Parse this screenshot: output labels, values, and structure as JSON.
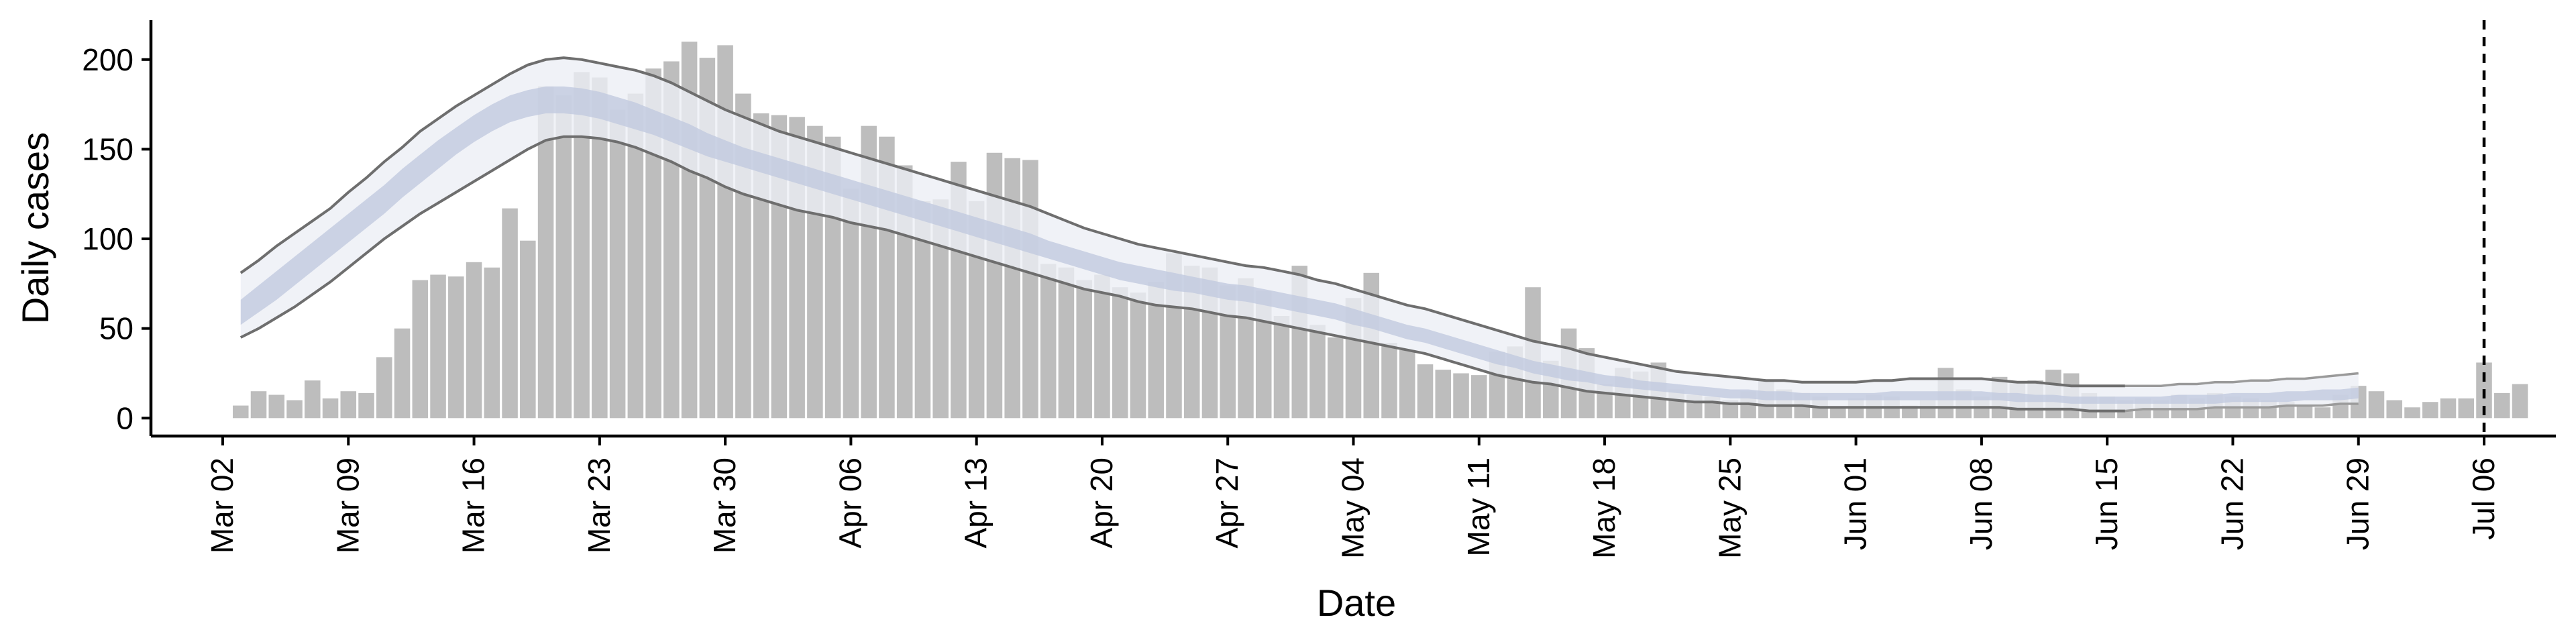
{
  "chart_data": {
    "type": "bar",
    "xlabel": "Date",
    "ylabel": "Daily cases",
    "ylim": [
      -10,
      222
    ],
    "yticks": [
      0,
      50,
      100,
      150,
      200
    ],
    "x_start": "2020-02-27",
    "x_end": "2020-07-10",
    "xtick_labels": [
      "Mar 02",
      "Mar 09",
      "Mar 16",
      "Mar 23",
      "Mar 30",
      "Apr 06",
      "Apr 13",
      "Apr 20",
      "Apr 27",
      "May 04",
      "May 11",
      "May 18",
      "May 25",
      "Jun 01",
      "Jun 08",
      "Jun 15",
      "Jun 22",
      "Jun 29",
      "Jul 06"
    ],
    "xtick_dates": [
      "2020-03-02",
      "2020-03-09",
      "2020-03-16",
      "2020-03-23",
      "2020-03-30",
      "2020-04-06",
      "2020-04-13",
      "2020-04-20",
      "2020-04-27",
      "2020-05-04",
      "2020-05-11",
      "2020-05-18",
      "2020-05-25",
      "2020-06-01",
      "2020-06-08",
      "2020-06-15",
      "2020-06-22",
      "2020-06-29",
      "2020-07-06"
    ],
    "vline_date": "2020-07-06",
    "grid": false,
    "colors": {
      "bars": "#bdbdbd",
      "outer_band": "#eceef5",
      "inner_band": "#c2cadf",
      "band_lines": "#6e6e6e",
      "tail_lines": "#9a9a9a",
      "axis": "#000000"
    },
    "daily_cases": {
      "start_date": "2020-03-03",
      "values": [
        7,
        15,
        13,
        10,
        21,
        11,
        15,
        14,
        34,
        50,
        77,
        80,
        79,
        87,
        84,
        117,
        99,
        185,
        180,
        193,
        190,
        172,
        181,
        195,
        199,
        210,
        201,
        208,
        181,
        170,
        169,
        168,
        163,
        157,
        128,
        163,
        157,
        141,
        121,
        122,
        143,
        121,
        148,
        145,
        144,
        86,
        84,
        77,
        80,
        73,
        70,
        76,
        92,
        85,
        84,
        74,
        78,
        71,
        57,
        85,
        52,
        45,
        67,
        81,
        42,
        38,
        30,
        27,
        25,
        24,
        37,
        40,
        73,
        32,
        50,
        39,
        19,
        28,
        26,
        31,
        16,
        13,
        12,
        10,
        15,
        21,
        16,
        14,
        12,
        6,
        11,
        13,
        12,
        7,
        10,
        28,
        16,
        12,
        23,
        20,
        21,
        27,
        25,
        14,
        12,
        10,
        11,
        10,
        13,
        11,
        14,
        12,
        11,
        10,
        9,
        7,
        6,
        13,
        18,
        15,
        10,
        6,
        9,
        11,
        11,
        31,
        14,
        19
      ]
    },
    "estimate": {
      "start_date": "2020-03-03",
      "outer_upper": [
        81,
        88,
        96,
        103,
        110,
        117,
        126,
        134,
        143,
        151,
        160,
        167,
        174,
        180,
        186,
        192,
        197,
        200,
        201,
        200,
        198,
        196,
        194,
        191,
        187,
        182,
        177,
        172,
        168,
        164,
        160,
        157,
        154,
        151,
        148,
        145,
        142,
        139,
        136,
        133,
        130,
        127,
        124,
        121,
        118,
        114,
        110,
        106,
        103,
        100,
        97,
        95,
        93,
        91,
        89,
        87,
        85,
        84,
        82,
        80,
        77,
        75,
        72,
        69,
        66,
        63,
        61,
        58,
        55,
        52,
        49,
        46,
        43,
        41,
        39,
        36,
        34,
        32,
        30,
        28,
        26,
        25,
        24,
        23,
        22,
        21,
        21,
        20,
        20,
        20,
        20,
        21,
        21,
        22,
        22,
        22,
        22,
        22,
        21,
        20,
        20,
        19,
        18,
        18,
        18,
        18,
        18,
        18,
        19,
        19,
        20,
        20,
        21,
        21,
        22,
        22,
        23,
        24,
        25
      ],
      "inner_upper": [
        66,
        74,
        82,
        90,
        98,
        106,
        114,
        122,
        130,
        139,
        147,
        155,
        162,
        169,
        175,
        180,
        183,
        185,
        185,
        184,
        182,
        179,
        176,
        172,
        168,
        164,
        159,
        155,
        151,
        148,
        145,
        142,
        139,
        136,
        133,
        130,
        127,
        124,
        121,
        118,
        115,
        112,
        109,
        106,
        103,
        99,
        96,
        93,
        90,
        87,
        85,
        83,
        81,
        79,
        77,
        75,
        74,
        72,
        70,
        68,
        66,
        64,
        61,
        58,
        55,
        52,
        50,
        47,
        44,
        41,
        38,
        35,
        32,
        30,
        28,
        26,
        24,
        23,
        21,
        20,
        19,
        18,
        17,
        16,
        16,
        15,
        15,
        14,
        14,
        14,
        14,
        14,
        15,
        15,
        15,
        15,
        15,
        15,
        14,
        14,
        13,
        13,
        12,
        12,
        12,
        12,
        12,
        12,
        13,
        13,
        13,
        14,
        14,
        14,
        15,
        15,
        16,
        16,
        17
      ],
      "inner_lower": [
        52,
        59,
        66,
        74,
        82,
        90,
        98,
        106,
        114,
        123,
        131,
        139,
        147,
        154,
        160,
        165,
        168,
        170,
        170,
        169,
        167,
        164,
        161,
        158,
        154,
        150,
        146,
        143,
        140,
        137,
        134,
        131,
        128,
        125,
        122,
        119,
        116,
        113,
        110,
        107,
        104,
        101,
        98,
        95,
        92,
        89,
        86,
        83,
        80,
        77,
        75,
        73,
        71,
        70,
        68,
        66,
        65,
        63,
        61,
        59,
        57,
        55,
        52,
        50,
        47,
        44,
        42,
        39,
        36,
        33,
        30,
        28,
        25,
        23,
        21,
        20,
        18,
        17,
        16,
        15,
        14,
        13,
        12,
        11,
        11,
        10,
        10,
        10,
        10,
        10,
        10,
        10,
        10,
        10,
        10,
        10,
        10,
        10,
        10,
        9,
        9,
        9,
        8,
        8,
        8,
        8,
        8,
        8,
        8,
        8,
        8,
        9,
        9,
        9,
        9,
        10,
        10,
        10,
        11
      ],
      "outer_lower": [
        45,
        50,
        56,
        62,
        69,
        76,
        84,
        92,
        100,
        107,
        114,
        120,
        126,
        132,
        138,
        144,
        150,
        155,
        157,
        157,
        156,
        154,
        151,
        147,
        143,
        138,
        134,
        129,
        125,
        122,
        119,
        116,
        114,
        112,
        109,
        107,
        105,
        102,
        99,
        96,
        93,
        90,
        87,
        84,
        81,
        78,
        75,
        72,
        70,
        68,
        65,
        63,
        62,
        61,
        59,
        57,
        56,
        54,
        52,
        50,
        48,
        46,
        44,
        42,
        40,
        38,
        36,
        33,
        30,
        27,
        24,
        22,
        20,
        19,
        17,
        15,
        14,
        13,
        12,
        11,
        10,
        9,
        9,
        8,
        8,
        7,
        7,
        7,
        6,
        6,
        6,
        6,
        6,
        6,
        6,
        6,
        6,
        6,
        6,
        5,
        5,
        5,
        5,
        4,
        4,
        4,
        5,
        5,
        5,
        5,
        6,
        6,
        6,
        6,
        7,
        7,
        7,
        8,
        8
      ],
      "tail_start_date": "2020-06-16"
    }
  }
}
